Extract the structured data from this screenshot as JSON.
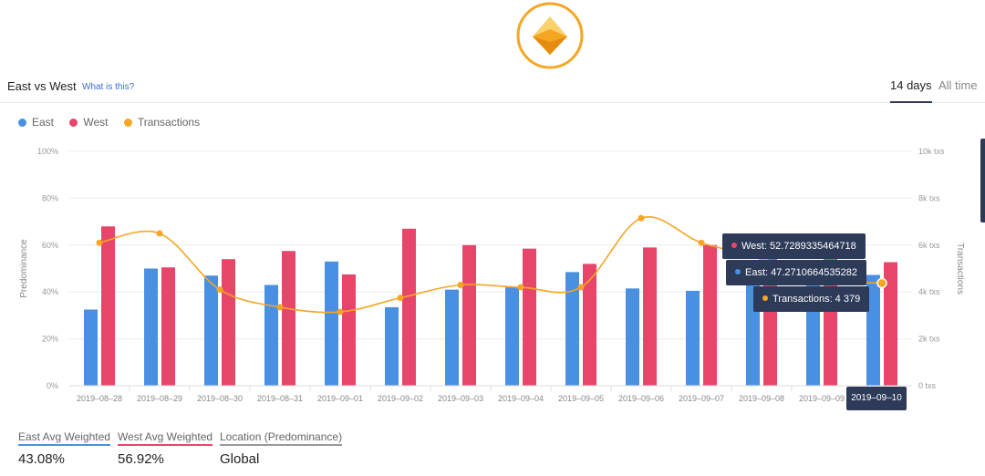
{
  "header": {
    "title": "East vs West",
    "help_link": "What is this?",
    "range_active": "14 days",
    "range_other": "All time"
  },
  "legend": [
    "East",
    "West",
    "Transactions"
  ],
  "colors": {
    "east": "#4a90e2",
    "west": "#e8456b",
    "transactions": "#f5a623",
    "logo": "#f5a623",
    "tooltip_bg": "#2d3a58"
  },
  "chart_data": {
    "type": "bar",
    "categories": [
      "2019–08–28",
      "2019–08–29",
      "2019–08–30",
      "2019–08–31",
      "2019–09–01",
      "2019–09–02",
      "2019–09–03",
      "2019–09–04",
      "2019–09–05",
      "2019–09–06",
      "2019–09–07",
      "2019–09–08",
      "2019–09–09",
      "2019–09–10"
    ],
    "series": [
      {
        "name": "East",
        "axis": "left",
        "values": [
          32.5,
          50,
          47,
          43,
          53,
          33.5,
          41,
          42,
          48.5,
          41.5,
          40.5,
          45,
          44,
          47.27
        ]
      },
      {
        "name": "West",
        "axis": "left",
        "values": [
          68,
          50.5,
          54,
          57.5,
          47.5,
          67,
          60,
          58.5,
          52,
          59,
          60,
          55,
          56,
          52.73
        ]
      },
      {
        "name": "Transactions",
        "type": "line",
        "axis": "right",
        "values": [
          6100,
          6500,
          4100,
          3350,
          3150,
          3750,
          4300,
          4200,
          4200,
          7150,
          6100,
          5450,
          4550,
          4379
        ]
      }
    ],
    "ylabel": "Predominance",
    "y2label": "Transactions",
    "ylim": [
      0,
      100
    ],
    "y2lim": [
      0,
      10000
    ],
    "yticks": [
      "0%",
      "20%",
      "40%",
      "60%",
      "80%",
      "100%"
    ],
    "y2ticks": [
      "0 txs",
      "2k txs",
      "4k txs",
      "6k txs",
      "8k txs",
      "10k txs"
    ],
    "grid": true,
    "legend_position": "top-left"
  },
  "tooltip": {
    "west": "West: 52.7289335464718",
    "east": "East: 47.2710664535282",
    "transactions": "Transactions: 4 379",
    "date": "2019–09–10"
  },
  "stats": [
    {
      "label": "East Avg Weighted",
      "value": "43.08%"
    },
    {
      "label": "West Avg Weighted",
      "value": "56.92%"
    },
    {
      "label": "Location (Predominance)",
      "value": "Global"
    }
  ]
}
